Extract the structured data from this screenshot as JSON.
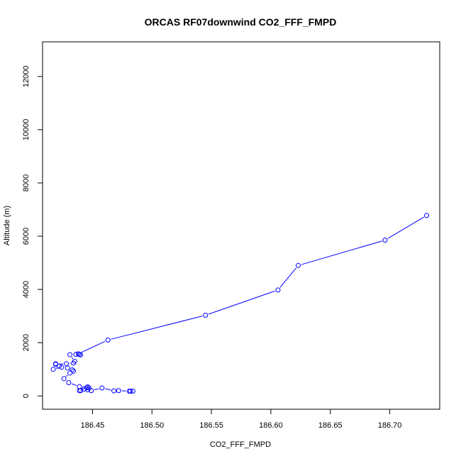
{
  "chart_data": {
    "type": "line",
    "title": "ORCAS RF07downwind CO2_FFF_FMPD",
    "xlabel": "CO2_FFF_FMPD",
    "ylabel": "Altitude (m)",
    "xlim": [
      186.408,
      186.742
    ],
    "ylim": [
      -500,
      13300
    ],
    "xticks": [
      186.45,
      186.5,
      186.55,
      186.6,
      186.65,
      186.7
    ],
    "xtick_labels": [
      "186.45",
      "186.50",
      "186.55",
      "186.60",
      "186.65",
      "186.70"
    ],
    "yticks": [
      0,
      2000,
      4000,
      6000,
      8000,
      10000,
      12000
    ],
    "ytick_labels": [
      "0",
      "2000",
      "4000",
      "6000",
      "8000",
      "10000",
      "12000"
    ],
    "grid": false,
    "markers": "open-circle",
    "series": [
      {
        "color": "#0000ff",
        "x": [
          186.482,
          186.484,
          186.481,
          186.472,
          186.468,
          186.458,
          186.449,
          186.446,
          186.443,
          186.44,
          186.439,
          186.446,
          186.447,
          186.445,
          186.439,
          186.43,
          186.426,
          186.431,
          186.434,
          186.433,
          186.429,
          186.424,
          186.417,
          186.422,
          186.419,
          186.419,
          186.428,
          186.434,
          186.435,
          186.431,
          186.436,
          186.439,
          186.44,
          186.438,
          186.463,
          186.545,
          186.606,
          186.623,
          186.696,
          186.731
        ],
        "y": [
          180,
          180,
          180,
          200,
          190,
          300,
          200,
          230,
          260,
          200,
          200,
          340,
          300,
          310,
          350,
          500,
          650,
          860,
          930,
          980,
          1050,
          1080,
          1000,
          1120,
          1210,
          1190,
          1210,
          1230,
          1300,
          1550,
          1560,
          1560,
          1540,
          1580,
          2100,
          3030,
          3980,
          4900,
          5850,
          6780
        ]
      }
    ]
  }
}
